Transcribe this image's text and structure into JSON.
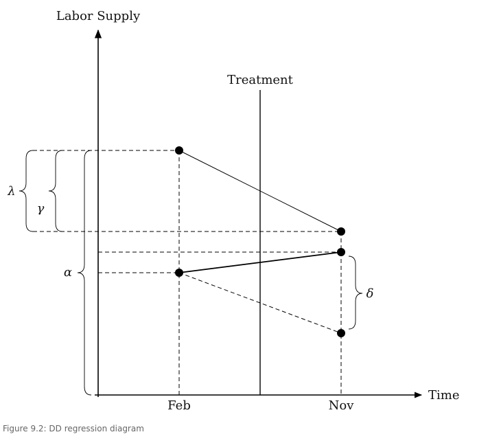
{
  "axes": {
    "y_label": "Labor Supply",
    "x_label": "Time",
    "x_ticks": [
      "Feb",
      "Nov"
    ]
  },
  "treatment_label": "Treatment",
  "braces": {
    "lambda": "λ",
    "gamma": "γ",
    "alpha": "α",
    "delta": "δ"
  },
  "caption": "Figure 9.2: DD regression diagram"
}
